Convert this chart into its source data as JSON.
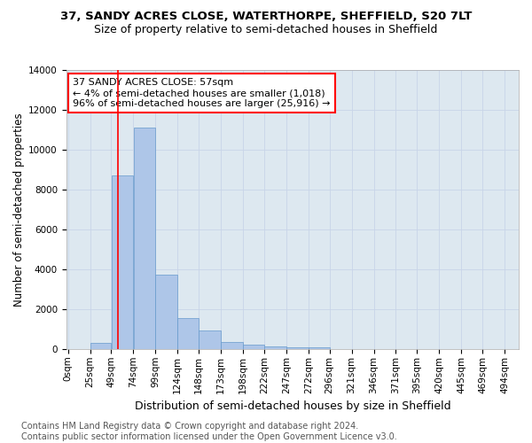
{
  "title": "37, SANDY ACRES CLOSE, WATERTHORPE, SHEFFIELD, S20 7LT",
  "subtitle": "Size of property relative to semi-detached houses in Sheffield",
  "xlabel": "Distribution of semi-detached houses by size in Sheffield",
  "ylabel": "Number of semi-detached properties",
  "footer_line1": "Contains HM Land Registry data © Crown copyright and database right 2024.",
  "footer_line2": "Contains public sector information licensed under the Open Government Licence v3.0.",
  "annotation_line1": "37 SANDY ACRES CLOSE: 57sqm",
  "annotation_line2": "← 4% of semi-detached houses are smaller (1,018)",
  "annotation_line3": "96% of semi-detached houses are larger (25,916) →",
  "property_size": 57,
  "bar_left_edges": [
    0,
    25,
    49,
    74,
    99,
    124,
    148,
    173,
    198,
    222,
    247,
    272,
    296,
    321,
    346,
    371,
    395,
    420,
    445,
    469
  ],
  "bar_heights": [
    0,
    300,
    8700,
    11100,
    3750,
    1550,
    950,
    350,
    225,
    150,
    100,
    100,
    0,
    0,
    0,
    0,
    0,
    0,
    0,
    0
  ],
  "bar_widths": [
    25,
    24,
    25,
    25,
    25,
    24,
    25,
    25,
    24,
    25,
    25,
    24,
    25,
    25,
    25,
    24,
    25,
    25,
    24,
    25
  ],
  "bar_color": "#aec6e8",
  "bar_edge_color": "#6699cc",
  "redline_color": "red",
  "redline_x": 57,
  "ylim": [
    0,
    14000
  ],
  "yticks": [
    0,
    2000,
    4000,
    6000,
    8000,
    10000,
    12000,
    14000
  ],
  "xlim": [
    -2,
    510
  ],
  "xtick_labels": [
    "0sqm",
    "25sqm",
    "49sqm",
    "74sqm",
    "99sqm",
    "124sqm",
    "148sqm",
    "173sqm",
    "198sqm",
    "222sqm",
    "247sqm",
    "272sqm",
    "296sqm",
    "321sqm",
    "346sqm",
    "371sqm",
    "395sqm",
    "420sqm",
    "445sqm",
    "469sqm",
    "494sqm"
  ],
  "xtick_positions": [
    0,
    25,
    49,
    74,
    99,
    124,
    148,
    173,
    198,
    222,
    247,
    272,
    296,
    321,
    346,
    371,
    395,
    420,
    445,
    469,
    494
  ],
  "grid_color": "#c8d4e8",
  "background_color": "#dde8f0",
  "title_fontsize": 9.5,
  "subtitle_fontsize": 9,
  "axis_label_fontsize": 8.5,
  "tick_fontsize": 7.5,
  "annotation_fontsize": 8,
  "footer_fontsize": 7
}
